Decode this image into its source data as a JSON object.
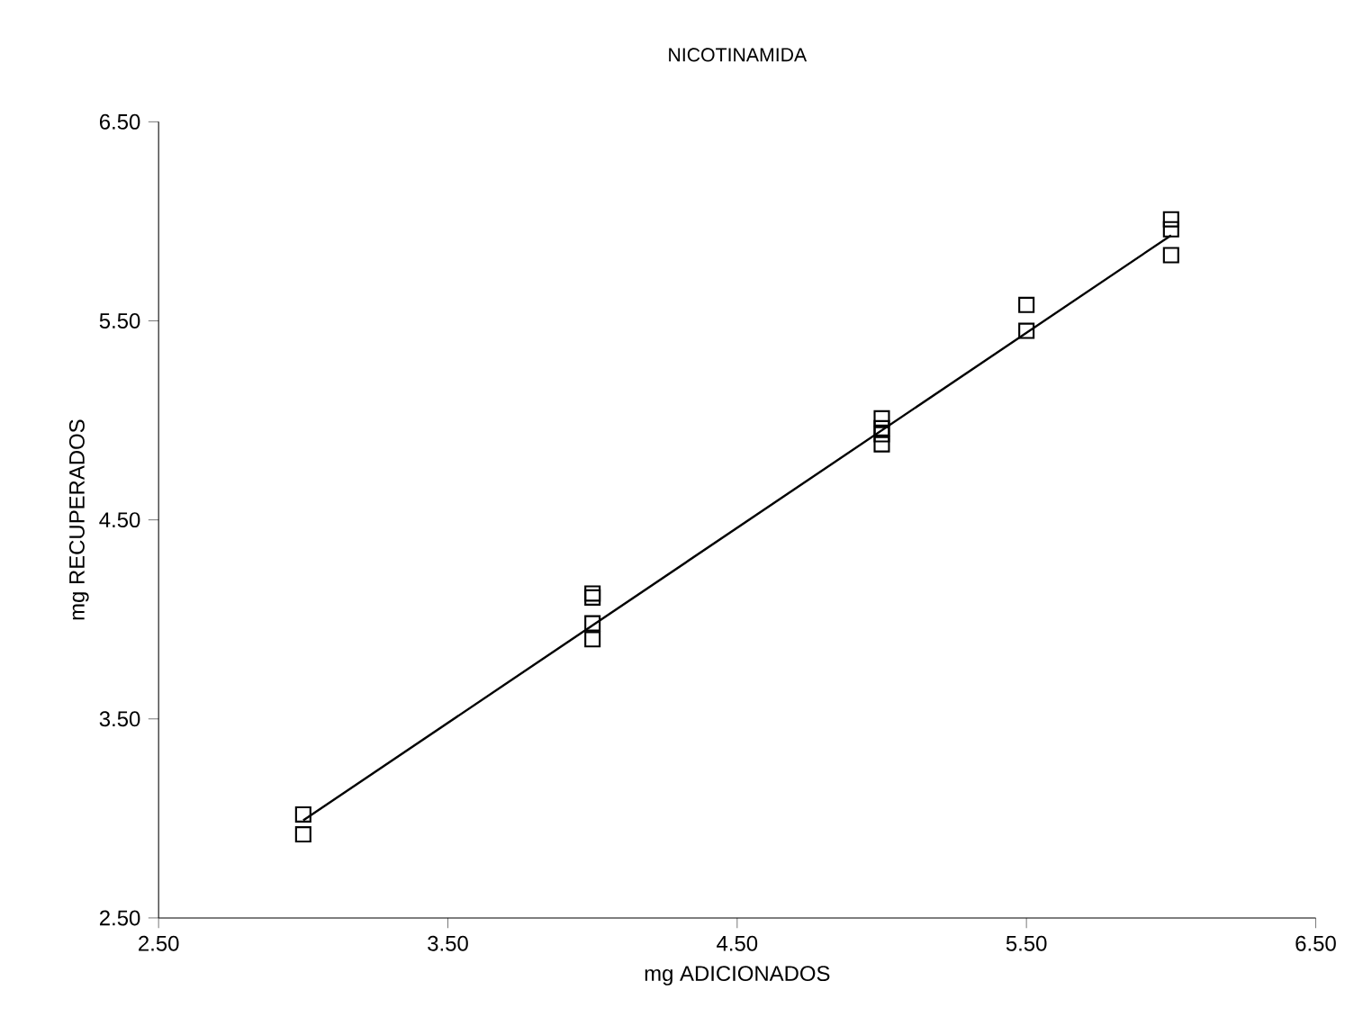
{
  "chart_data": {
    "type": "scatter",
    "title": "NICOTINAMIDA",
    "xlabel": "mg  ADICIONADOS",
    "ylabel": "mg RECUPERADOS",
    "xlim": [
      2.5,
      6.5
    ],
    "ylim": [
      2.5,
      6.5
    ],
    "xticks": [
      {
        "value": 2.5,
        "label": "2.50"
      },
      {
        "value": 3.5,
        "label": "3.50"
      },
      {
        "value": 4.5,
        "label": "4.50"
      },
      {
        "value": 5.5,
        "label": "5.50"
      },
      {
        "value": 6.5,
        "label": "6.50"
      }
    ],
    "yticks": [
      {
        "value": 2.5,
        "label": "2.50"
      },
      {
        "value": 3.5,
        "label": "3.50"
      },
      {
        "value": 4.5,
        "label": "4.50"
      },
      {
        "value": 5.5,
        "label": "5.50"
      },
      {
        "value": 6.5,
        "label": "6.50"
      }
    ],
    "marker": "square",
    "series": [
      {
        "color": "#000000",
        "x": [
          3,
          3,
          4,
          4,
          4,
          4,
          5,
          5,
          5,
          5,
          5.5,
          5.5,
          6,
          6,
          6
        ],
        "values": [
          3.02,
          2.92,
          4.13,
          4.11,
          3.98,
          3.9,
          5.01,
          4.96,
          4.93,
          4.88,
          5.58,
          5.45,
          6.01,
          5.96,
          5.83
        ]
      },
      {
        "type": "line",
        "color": "#000000",
        "marker": "none",
        "x": [
          3,
          6
        ],
        "values": [
          2.99,
          5.93
        ]
      }
    ]
  }
}
